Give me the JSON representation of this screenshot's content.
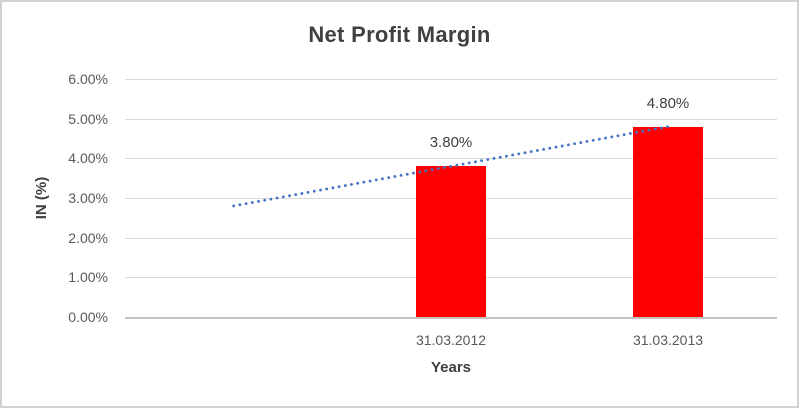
{
  "chart_data": {
    "type": "bar",
    "title": "Net Profit Margin",
    "xlabel": "Years",
    "ylabel": "IN (%)",
    "categories": [
      "31.03.2012",
      "31.03.2013"
    ],
    "values": [
      3.8,
      4.8
    ],
    "value_labels": [
      "3.80%",
      "4.80%"
    ],
    "ylim": [
      0,
      6
    ],
    "ytick_step": 1,
    "ytick_labels": [
      "0.00%",
      "1.00%",
      "2.00%",
      "3.00%",
      "4.00%",
      "5.00%",
      "6.00%"
    ],
    "grid": true,
    "legend": "none",
    "bar_color": "#FF0000",
    "trendline": {
      "type": "linear",
      "style": "dotted",
      "color": "#4472C4",
      "start_value": 2.8,
      "end_value": 4.8
    }
  },
  "colors": {
    "bar": "#FF0000",
    "trendline": "#4472C4",
    "gridline": "#D9D9D9",
    "axis_line": "#C3C3C3",
    "tick_text": "#595959",
    "title_text": "#404040",
    "border": "#D2D2D5",
    "background": "#FFFFFF"
  }
}
